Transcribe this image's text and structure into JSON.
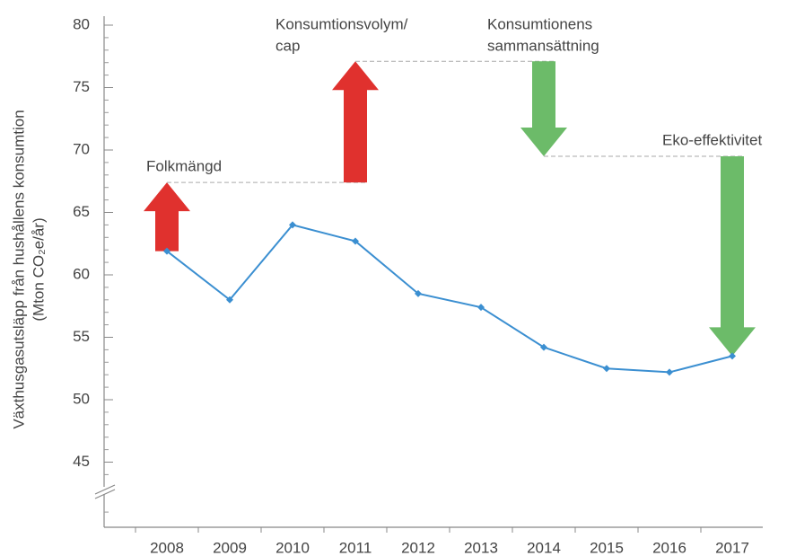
{
  "chart_data": {
    "type": "line",
    "ylabel": [
      "Växthusgasutsläpp från hushållens konsumtion",
      "(Mton CO₂e/år)"
    ],
    "categories": [
      "2008",
      "2009",
      "2010",
      "2011",
      "2012",
      "2013",
      "2014",
      "2015",
      "2016",
      "2017"
    ],
    "series": [
      {
        "color": "#3b8fd1",
        "values": [
          61.9,
          58.0,
          64.0,
          62.7,
          58.5,
          57.4,
          54.2,
          52.5,
          52.2,
          53.5
        ]
      }
    ],
    "ylim": [
      40,
      80
    ],
    "yticks": [
      45,
      50,
      55,
      60,
      65,
      70,
      75,
      80
    ],
    "annotations": [
      {
        "label": [
          "Folkmängd"
        ],
        "category": "2008",
        "from": 61.9,
        "to": 67.4,
        "color": "#e0312e"
      },
      {
        "label": [
          "Konsumtionsvolym/",
          "cap"
        ],
        "category": "2011",
        "from": 67.4,
        "to": 77.1,
        "color": "#e0312e"
      },
      {
        "label": [
          "Konsumtionens",
          "sammansättning"
        ],
        "category": "2014",
        "from": 77.1,
        "to": 69.5,
        "color": "#6cbb69"
      },
      {
        "label": [
          "Eko-effektivitet"
        ],
        "category": "2017",
        "from": 69.5,
        "to": 53.5,
        "color": "#6cbb69"
      }
    ]
  }
}
